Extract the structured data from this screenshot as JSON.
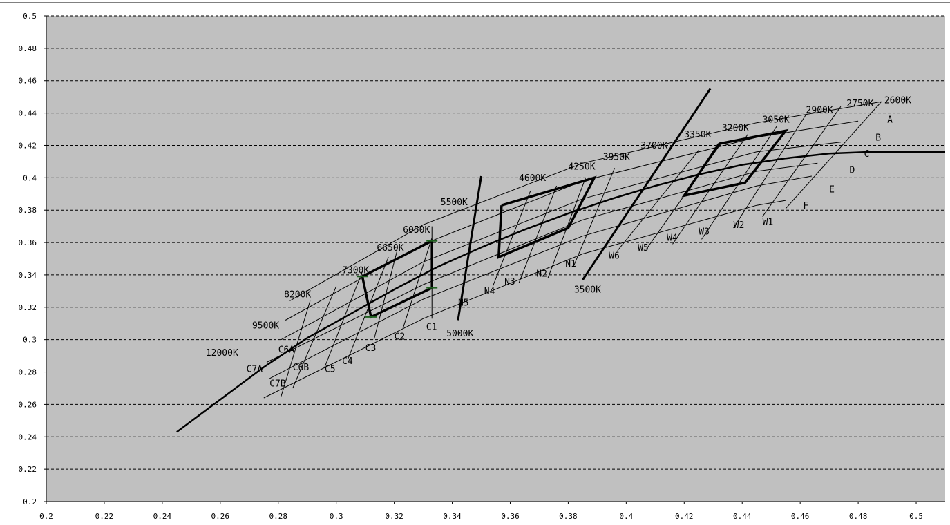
{
  "colors": {
    "plot_background": "#c0c0c0",
    "gridline": "#000000",
    "grid_line": "#000000",
    "thin_line": "#000000",
    "thick_line": "#000000",
    "marker": "#1f5f1f"
  },
  "chart_data": {
    "type": "line",
    "title": "",
    "xlabel": "",
    "ylabel": "",
    "xlim": [
      0.2,
      0.51
    ],
    "ylim": [
      0.2,
      0.5
    ],
    "xticks": [
      0.2,
      0.22,
      0.24,
      0.26,
      0.28,
      0.3,
      0.32,
      0.34,
      0.36,
      0.38,
      0.4,
      0.42,
      0.44,
      0.46,
      0.48,
      0.5
    ],
    "xtick_labels": [
      "0.2",
      "0.22",
      "0.24",
      "0.26",
      "0.28",
      "0.3",
      "0.32",
      "0.34",
      "0.36",
      "0.38",
      "0.4",
      "0.42",
      "0.44",
      "0.46",
      "0.48",
      "0.5"
    ],
    "yticks": [
      0.2,
      0.22,
      0.24,
      0.26,
      0.28,
      0.3,
      0.32,
      0.34,
      0.36,
      0.38,
      0.4,
      0.42,
      0.44,
      0.46,
      0.48,
      0.5
    ],
    "ytick_labels": [
      "0.2",
      "0.22",
      "0.24",
      "0.26",
      "0.28",
      "0.3",
      "0.32",
      "0.34",
      "0.36",
      "0.38",
      "0.4",
      "0.42",
      "0.44",
      "0.46",
      "0.48",
      "0.5"
    ],
    "grid": "horizontal dashed",
    "legend": "none",
    "curve": {
      "x": [
        0.245,
        0.26,
        0.275,
        0.29,
        0.305,
        0.32,
        0.335,
        0.35,
        0.365,
        0.38,
        0.395,
        0.41,
        0.425,
        0.44,
        0.455,
        0.47,
        0.485,
        0.5,
        0.51
      ],
      "y": [
        0.243,
        0.263,
        0.283,
        0.301,
        0.316,
        0.331,
        0.345,
        0.357,
        0.368,
        0.378,
        0.387,
        0.395,
        0.402,
        0.408,
        0.412,
        0.415,
        0.416,
        0.416,
        0.416
      ]
    },
    "thin_lines": [
      {
        "x": [
          0.284,
          0.33,
          0.385,
          0.445,
          0.488
        ],
        "y": [
          0.324,
          0.371,
          0.409,
          0.434,
          0.447
        ]
      },
      {
        "x": [
          0.2825,
          0.33,
          0.385,
          0.445,
          0.48
        ],
        "y": [
          0.312,
          0.359,
          0.398,
          0.425,
          0.435
        ]
      },
      {
        "x": [
          0.281,
          0.33,
          0.385,
          0.445,
          0.474
        ],
        "y": [
          0.3,
          0.348,
          0.387,
          0.416,
          0.422
        ]
      },
      {
        "x": [
          0.276,
          0.33,
          0.385,
          0.445,
          0.466
        ],
        "y": [
          0.286,
          0.334,
          0.374,
          0.404,
          0.409
        ]
      },
      {
        "x": [
          0.277,
          0.33,
          0.385,
          0.445,
          0.464
        ],
        "y": [
          0.276,
          0.325,
          0.364,
          0.395,
          0.401
        ]
      },
      {
        "x": [
          0.275,
          0.33,
          0.385,
          0.445,
          0.455
        ],
        "y": [
          0.264,
          0.313,
          0.353,
          0.383,
          0.386
        ]
      },
      {
        "x": [
          0.281,
          0.291
        ],
        "y": [
          0.265,
          0.324
        ]
      },
      {
        "x": [
          0.285,
          0.3
        ],
        "y": [
          0.27,
          0.333
        ]
      },
      {
        "x": [
          0.296,
          0.309
        ],
        "y": [
          0.283,
          0.342
        ]
      },
      {
        "x": [
          0.304,
          0.318
        ],
        "y": [
          0.288,
          0.351
        ]
      },
      {
        "x": [
          0.313,
          0.321
        ],
        "y": [
          0.3,
          0.355
        ]
      },
      {
        "x": [
          0.323,
          0.333
        ],
        "y": [
          0.307,
          0.363
        ]
      },
      {
        "x": [
          0.333,
          0.333
        ],
        "y": [
          0.313,
          0.37
        ]
      },
      {
        "x": [
          0.354,
          0.367
        ],
        "y": [
          0.333,
          0.392
        ]
      },
      {
        "x": [
          0.363,
          0.376
        ],
        "y": [
          0.335,
          0.395
        ]
      },
      {
        "x": [
          0.373,
          0.386
        ],
        "y": [
          0.338,
          0.4
        ]
      },
      {
        "x": [
          0.382,
          0.396
        ],
        "y": [
          0.346,
          0.406
        ]
      },
      {
        "x": [
          0.397,
          0.425
        ],
        "y": [
          0.355,
          0.417
        ]
      },
      {
        "x": [
          0.407,
          0.433
        ],
        "y": [
          0.356,
          0.422
        ]
      },
      {
        "x": [
          0.416,
          0.442
        ],
        "y": [
          0.359,
          0.427
        ]
      },
      {
        "x": [
          0.426,
          0.452
        ],
        "y": [
          0.362,
          0.432
        ]
      },
      {
        "x": [
          0.437,
          0.462
        ],
        "y": [
          0.369,
          0.439
        ]
      },
      {
        "x": [
          0.447,
          0.474
        ],
        "y": [
          0.376,
          0.444
        ]
      },
      {
        "x": [
          0.455,
          0.488
        ],
        "y": [
          0.381,
          0.447
        ]
      }
    ],
    "thick_lines": [
      {
        "x": [
          0.342,
          0.35
        ],
        "y": [
          0.312,
          0.401
        ]
      },
      {
        "x": [
          0.385,
          0.429
        ],
        "y": [
          0.337,
          0.455
        ]
      }
    ],
    "quads": [
      {
        "x": [
          0.309,
          0.333,
          0.333,
          0.312,
          0.309
        ],
        "y": [
          0.339,
          0.361,
          0.332,
          0.314,
          0.339
        ]
      },
      {
        "x": [
          0.357,
          0.389,
          0.38,
          0.356,
          0.357
        ],
        "y": [
          0.383,
          0.4,
          0.369,
          0.351,
          0.383
        ]
      },
      {
        "x": [
          0.432,
          0.455,
          0.441,
          0.42,
          0.432
        ],
        "y": [
          0.421,
          0.429,
          0.397,
          0.389,
          0.421
        ]
      }
    ],
    "markers": {
      "x": [
        0.309,
        0.312,
        0.333,
        0.333
      ],
      "y": [
        0.339,
        0.314,
        0.361,
        0.332
      ]
    },
    "annotations": [
      {
        "text": "2600K",
        "x": 0.489,
        "y": 0.446,
        "anchor": "start"
      },
      {
        "text": "2750K",
        "x": 0.476,
        "y": 0.444,
        "anchor": "start"
      },
      {
        "text": "2900K",
        "x": 0.462,
        "y": 0.44,
        "anchor": "start"
      },
      {
        "text": "3050K",
        "x": 0.447,
        "y": 0.434,
        "anchor": "start"
      },
      {
        "text": "3200K",
        "x": 0.433,
        "y": 0.429,
        "anchor": "start"
      },
      {
        "text": "3350K",
        "x": 0.42,
        "y": 0.425,
        "anchor": "start"
      },
      {
        "text": "3700K",
        "x": 0.405,
        "y": 0.418,
        "anchor": "start"
      },
      {
        "text": "3950K",
        "x": 0.392,
        "y": 0.411,
        "anchor": "start"
      },
      {
        "text": "4250K",
        "x": 0.38,
        "y": 0.405,
        "anchor": "start"
      },
      {
        "text": "4600K",
        "x": 0.363,
        "y": 0.398,
        "anchor": "start"
      },
      {
        "text": "5500K",
        "x": 0.336,
        "y": 0.383,
        "anchor": "start"
      },
      {
        "text": "6050K",
        "x": 0.323,
        "y": 0.366,
        "anchor": "start"
      },
      {
        "text": "6650K",
        "x": 0.314,
        "y": 0.355,
        "anchor": "start"
      },
      {
        "text": "7300K",
        "x": 0.302,
        "y": 0.341,
        "anchor": "start"
      },
      {
        "text": "8200K",
        "x": 0.282,
        "y": 0.326,
        "anchor": "start"
      },
      {
        "text": "9500K",
        "x": 0.271,
        "y": 0.307,
        "anchor": "start"
      },
      {
        "text": "12000K",
        "x": 0.255,
        "y": 0.29,
        "anchor": "start"
      },
      {
        "text": "A",
        "x": 0.49,
        "y": 0.434,
        "anchor": "start"
      },
      {
        "text": "B",
        "x": 0.486,
        "y": 0.423,
        "anchor": "start"
      },
      {
        "text": "C",
        "x": 0.482,
        "y": 0.413,
        "anchor": "start"
      },
      {
        "text": "D",
        "x": 0.477,
        "y": 0.403,
        "anchor": "start"
      },
      {
        "text": "E",
        "x": 0.47,
        "y": 0.391,
        "anchor": "start"
      },
      {
        "text": "F",
        "x": 0.461,
        "y": 0.381,
        "anchor": "start"
      },
      {
        "text": "W1",
        "x": 0.447,
        "y": 0.371,
        "anchor": "start"
      },
      {
        "text": "W2",
        "x": 0.437,
        "y": 0.369,
        "anchor": "start"
      },
      {
        "text": "W3",
        "x": 0.425,
        "y": 0.365,
        "anchor": "start"
      },
      {
        "text": "W4",
        "x": 0.414,
        "y": 0.361,
        "anchor": "start"
      },
      {
        "text": "W5",
        "x": 0.404,
        "y": 0.355,
        "anchor": "start"
      },
      {
        "text": "W6",
        "x": 0.394,
        "y": 0.35,
        "anchor": "start"
      },
      {
        "text": "N1",
        "x": 0.379,
        "y": 0.345,
        "anchor": "start"
      },
      {
        "text": "N2",
        "x": 0.369,
        "y": 0.339,
        "anchor": "start"
      },
      {
        "text": "N3",
        "x": 0.358,
        "y": 0.334,
        "anchor": "start"
      },
      {
        "text": "N4",
        "x": 0.351,
        "y": 0.328,
        "anchor": "start"
      },
      {
        "text": "N5",
        "x": 0.342,
        "y": 0.321,
        "anchor": "start"
      },
      {
        "text": "3500K",
        "x": 0.382,
        "y": 0.329,
        "anchor": "start"
      },
      {
        "text": "5000K",
        "x": 0.338,
        "y": 0.302,
        "anchor": "start"
      },
      {
        "text": "C1",
        "x": 0.331,
        "y": 0.306,
        "anchor": "start"
      },
      {
        "text": "C2",
        "x": 0.32,
        "y": 0.3,
        "anchor": "start"
      },
      {
        "text": "C3",
        "x": 0.31,
        "y": 0.293,
        "anchor": "start"
      },
      {
        "text": "C4",
        "x": 0.302,
        "y": 0.285,
        "anchor": "start"
      },
      {
        "text": "C5",
        "x": 0.296,
        "y": 0.28,
        "anchor": "start"
      },
      {
        "text": "C6A",
        "x": 0.28,
        "y": 0.292,
        "anchor": "start"
      },
      {
        "text": "C6B",
        "x": 0.285,
        "y": 0.281,
        "anchor": "start"
      },
      {
        "text": "C7A",
        "x": 0.269,
        "y": 0.28,
        "anchor": "start"
      },
      {
        "text": "C7B",
        "x": 0.277,
        "y": 0.271,
        "anchor": "start"
      }
    ]
  }
}
